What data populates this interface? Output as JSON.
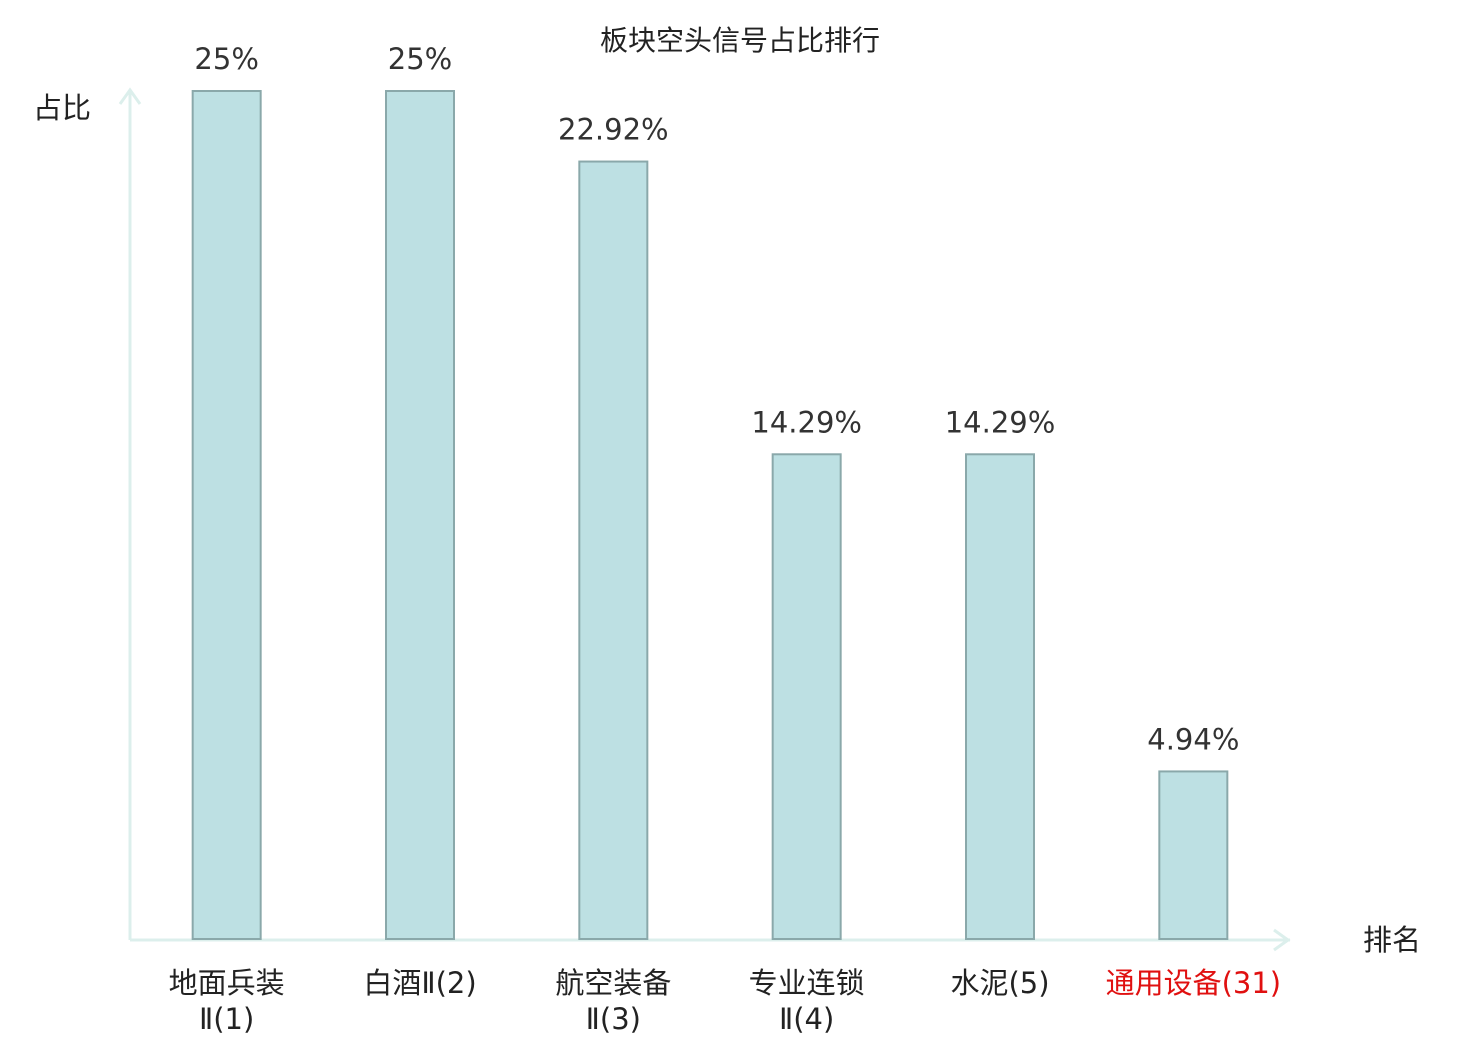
{
  "chart_data": {
    "type": "bar",
    "title": "板块空头信号占比排行",
    "y_label": "占比",
    "x_label": "排名",
    "categories": [
      "地面兵装\nⅡ(1)",
      "白酒Ⅱ(2)",
      "航空装备\nⅡ(3)",
      "专业连锁\nⅡ(4)",
      "水泥(5)",
      "通用设备(31)"
    ],
    "values": [
      25,
      25,
      22.92,
      14.29,
      14.29,
      4.94
    ],
    "value_labels": [
      "25%",
      "25%",
      "22.92%",
      "14.29%",
      "14.29%",
      "4.94%"
    ],
    "color": "#bde0e3",
    "edge_color": "#8aa8aa",
    "highlight_index": 5,
    "highlight_color": "#e01010",
    "ylim": [
      0,
      25
    ]
  }
}
